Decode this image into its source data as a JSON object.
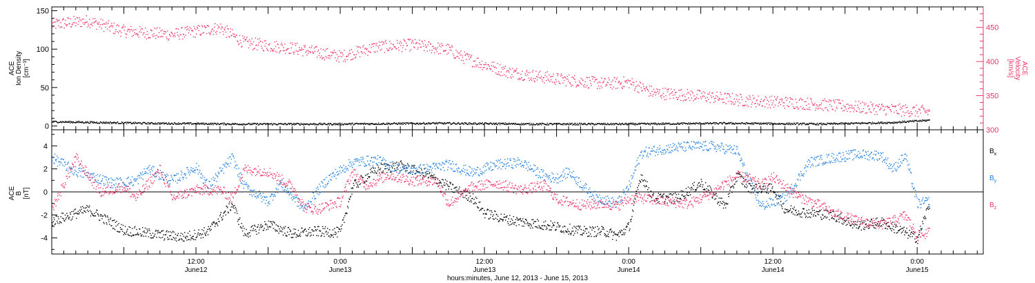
{
  "footer": {
    "time_axis_label": "hours:minutes, June 12, 2013 - June 15, 2013"
  },
  "colors": {
    "density": "#000000",
    "velocity": "#ee3366",
    "bx": "#000000",
    "by": "#1f7ee0",
    "bz": "#ee3366",
    "axis": "#000000"
  },
  "chart_data": [
    {
      "type": "scatter",
      "panel": "top",
      "xlabel": "hours:minutes, June 12, 2013 - June 15, 2013",
      "x_range_hours": [
        0,
        77.5
      ],
      "x_ticks": [
        {
          "hour": 12,
          "time": "12:00",
          "date": "June12"
        },
        {
          "hour": 24,
          "time": "0:00",
          "date": "June13"
        },
        {
          "hour": 36,
          "time": "12:00",
          "date": "June13"
        },
        {
          "hour": 48,
          "time": "0:00",
          "date": "June14"
        },
        {
          "hour": 60,
          "time": "12:00",
          "date": "June14"
        },
        {
          "hour": 72,
          "time": "0:00",
          "date": "June15"
        }
      ],
      "left_axis": {
        "title_line1": "ACE",
        "title_line2": "Ion Density",
        "title_line3": "[cm⁻³]",
        "ylim": [
          -5,
          155
        ],
        "ticks": [
          0,
          50,
          100,
          150
        ]
      },
      "right_axis": {
        "title_line1": "ACE",
        "title_line2": "Velocity",
        "title_line3": "[km/s]",
        "ylim": [
          300,
          480
        ],
        "ticks": [
          300,
          350,
          400,
          450
        ]
      },
      "series": [
        {
          "key": "density",
          "axis": "left",
          "points": [
            [
              0,
              6
            ],
            [
              8,
              4
            ],
            [
              16,
              3
            ],
            [
              24,
              3
            ],
            [
              32,
              4
            ],
            [
              40,
              3
            ],
            [
              48,
              3
            ],
            [
              56,
              4
            ],
            [
              64,
              3
            ],
            [
              70,
              5
            ],
            [
              73,
              8
            ]
          ]
        },
        {
          "key": "velocity",
          "axis": "right",
          "points": [
            [
              0,
              455
            ],
            [
              3,
              460
            ],
            [
              6,
              445
            ],
            [
              10,
              440
            ],
            [
              14,
              450
            ],
            [
              16,
              428
            ],
            [
              20,
              420
            ],
            [
              24,
              408
            ],
            [
              27,
              422
            ],
            [
              30,
              425
            ],
            [
              33,
              418
            ],
            [
              34,
              408
            ],
            [
              36,
              396
            ],
            [
              38,
              385
            ],
            [
              42,
              375
            ],
            [
              46,
              368
            ],
            [
              48,
              370
            ],
            [
              50,
              355
            ],
            [
              54,
              350
            ],
            [
              58,
              343
            ],
            [
              62,
              340
            ],
            [
              66,
              335
            ],
            [
              70,
              330
            ],
            [
              73,
              327
            ]
          ]
        }
      ]
    },
    {
      "type": "scatter",
      "panel": "bottom",
      "left_axis": {
        "title_line1": "ACE",
        "title_line2": "B",
        "title_line3": "[nT]",
        "ylim": [
          -5.4,
          5.4
        ],
        "ticks": [
          -4,
          -2,
          0,
          2,
          4
        ]
      },
      "series": [
        {
          "key": "bx",
          "name": "Bx",
          "points": [
            [
              0,
              -2.5
            ],
            [
              3,
              -1.5
            ],
            [
              6,
              -3.3
            ],
            [
              9,
              -3.7
            ],
            [
              11,
              -3.9
            ],
            [
              13,
              -3.4
            ],
            [
              15,
              -1.0
            ],
            [
              16,
              -3.6
            ],
            [
              18,
              -2.8
            ],
            [
              20,
              -3.6
            ],
            [
              22,
              -3.4
            ],
            [
              24,
              -3.5
            ],
            [
              25,
              0.5
            ],
            [
              27,
              2.0
            ],
            [
              29,
              2.3
            ],
            [
              31,
              1.6
            ],
            [
              33,
              0.5
            ],
            [
              35,
              -0.5
            ],
            [
              36,
              -1.8
            ],
            [
              38,
              -2.4
            ],
            [
              40,
              -2.7
            ],
            [
              42,
              -3.0
            ],
            [
              44,
              -3.4
            ],
            [
              46,
              -3.4
            ],
            [
              47,
              -3.8
            ],
            [
              48,
              -3.0
            ],
            [
              49,
              1.5
            ],
            [
              50,
              -0.5
            ],
            [
              52,
              -0.5
            ],
            [
              54,
              0.8
            ],
            [
              56,
              -1.2
            ],
            [
              57,
              1.5
            ],
            [
              58,
              0.4
            ],
            [
              60,
              0.3
            ],
            [
              61,
              -1.5
            ],
            [
              63,
              -1.8
            ],
            [
              65,
              -2.0
            ],
            [
              67,
              -2.9
            ],
            [
              69,
              -2.6
            ],
            [
              71,
              -3.5
            ],
            [
              72,
              -4.0
            ],
            [
              73,
              -1.0
            ]
          ]
        },
        {
          "key": "by",
          "name": "By",
          "points": [
            [
              0,
              3.0
            ],
            [
              2,
              1.8
            ],
            [
              3,
              1.5
            ],
            [
              5,
              0.8
            ],
            [
              7,
              1.0
            ],
            [
              8,
              2.0
            ],
            [
              10,
              1.0
            ],
            [
              12,
              2.2
            ],
            [
              13,
              0.5
            ],
            [
              15,
              3.0
            ],
            [
              16,
              0.5
            ],
            [
              18,
              -0.8
            ],
            [
              19,
              0.8
            ],
            [
              21,
              -1.5
            ],
            [
              22,
              0.0
            ],
            [
              23,
              1.2
            ],
            [
              25,
              2.6
            ],
            [
              27,
              2.8
            ],
            [
              29,
              2.0
            ],
            [
              31,
              2.0
            ],
            [
              33,
              2.4
            ],
            [
              35,
              1.7
            ],
            [
              37,
              2.4
            ],
            [
              39,
              2.6
            ],
            [
              41,
              1.4
            ],
            [
              42,
              1.2
            ],
            [
              43,
              1.8
            ],
            [
              45,
              -0.3
            ],
            [
              47,
              -1.0
            ],
            [
              48,
              0.5
            ],
            [
              49,
              3.4
            ],
            [
              51,
              3.8
            ],
            [
              53,
              4.0
            ],
            [
              55,
              4.0
            ],
            [
              57,
              3.6
            ],
            [
              58,
              1.0
            ],
            [
              59,
              -1.2
            ],
            [
              61,
              -0.5
            ],
            [
              63,
              2.6
            ],
            [
              65,
              3.0
            ],
            [
              67,
              3.3
            ],
            [
              69,
              3.2
            ],
            [
              70,
              2.0
            ],
            [
              71,
              3.2
            ],
            [
              72,
              -1.0
            ],
            [
              73,
              -0.8
            ]
          ]
        },
        {
          "key": "bz",
          "name": "Bz",
          "points": [
            [
              0,
              -1.5
            ],
            [
              2,
              3.0
            ],
            [
              4,
              0.0
            ],
            [
              6,
              0.5
            ],
            [
              7,
              -0.5
            ],
            [
              9,
              2.0
            ],
            [
              10,
              -0.5
            ],
            [
              12,
              0.2
            ],
            [
              14,
              0.2
            ],
            [
              15,
              -0.5
            ],
            [
              16,
              2.0
            ],
            [
              18,
              1.8
            ],
            [
              20,
              0.5
            ],
            [
              21,
              -1.3
            ],
            [
              22,
              -1.5
            ],
            [
              24,
              -0.8
            ],
            [
              25,
              1.8
            ],
            [
              26,
              0.6
            ],
            [
              28,
              1.5
            ],
            [
              30,
              1.0
            ],
            [
              32,
              1.0
            ],
            [
              33,
              -1.0
            ],
            [
              35,
              0.5
            ],
            [
              37,
              0.8
            ],
            [
              39,
              0.2
            ],
            [
              41,
              0.6
            ],
            [
              42,
              -0.6
            ],
            [
              44,
              -1.1
            ],
            [
              46,
              -1.0
            ],
            [
              47,
              -1.2
            ],
            [
              48,
              -0.6
            ],
            [
              49,
              -0.5
            ],
            [
              51,
              -0.8
            ],
            [
              53,
              -1.0
            ],
            [
              55,
              0.0
            ],
            [
              56,
              0.8
            ],
            [
              57,
              1.4
            ],
            [
              58,
              1.2
            ],
            [
              59,
              0.6
            ],
            [
              60,
              1.3
            ],
            [
              61,
              0.5
            ],
            [
              62,
              -0.3
            ],
            [
              64,
              -1.2
            ],
            [
              65,
              -1.8
            ],
            [
              67,
              -2.5
            ],
            [
              69,
              -2.8
            ],
            [
              70,
              -2.5
            ],
            [
              71,
              -2.0
            ],
            [
              72,
              -3.8
            ],
            [
              73,
              -3.5
            ]
          ]
        }
      ]
    }
  ]
}
